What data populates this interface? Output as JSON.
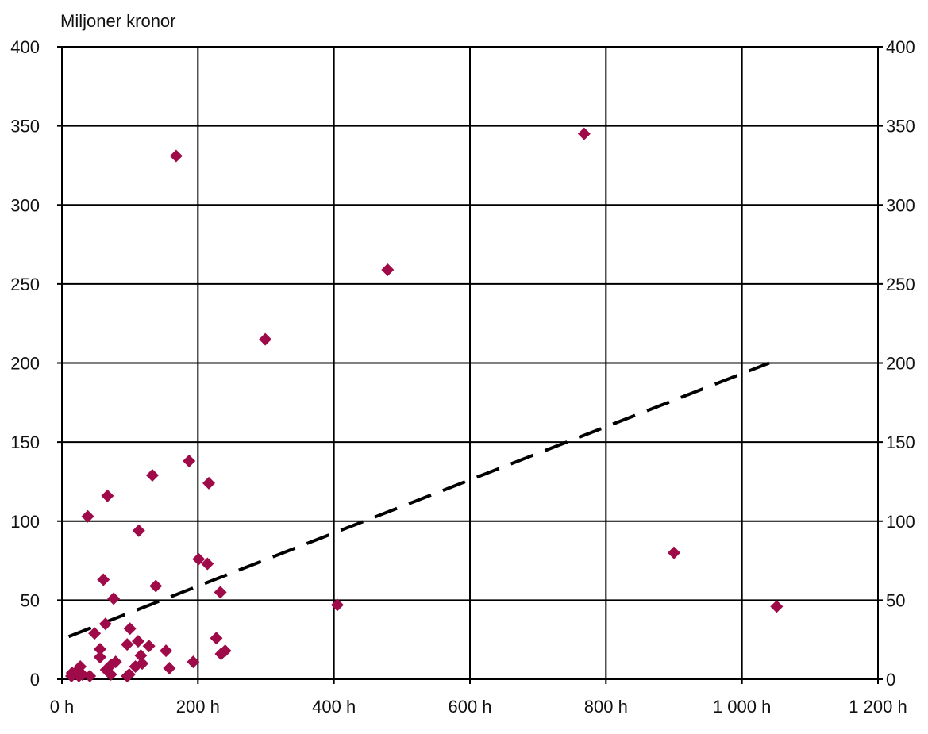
{
  "chart_data": {
    "type": "scatter",
    "unit_label": "Miljoner kronor",
    "xlim": [
      0,
      1200
    ],
    "ylim": [
      0,
      400
    ],
    "x_ticks": [
      0,
      200,
      400,
      600,
      800,
      1000,
      1200
    ],
    "x_tick_labels": [
      "0 h",
      "200 h",
      "400 h",
      "600 h",
      "800 h",
      "1 000 h",
      "1 200 h"
    ],
    "y_ticks": [
      0,
      50,
      100,
      150,
      200,
      250,
      300,
      350,
      400
    ],
    "y_tick_labels": [
      "0",
      "50",
      "100",
      "150",
      "200",
      "250",
      "300",
      "350",
      "400"
    ],
    "grid": true,
    "marker_color": "#9E0B48",
    "trend_color": "#000000",
    "points": [
      {
        "x": 168,
        "y": 331
      },
      {
        "x": 768,
        "y": 345
      },
      {
        "x": 479,
        "y": 259
      },
      {
        "x": 299,
        "y": 215
      },
      {
        "x": 187,
        "y": 138
      },
      {
        "x": 133,
        "y": 129
      },
      {
        "x": 216,
        "y": 124
      },
      {
        "x": 67,
        "y": 116
      },
      {
        "x": 38,
        "y": 103
      },
      {
        "x": 113,
        "y": 94
      },
      {
        "x": 900,
        "y": 80
      },
      {
        "x": 201,
        "y": 76
      },
      {
        "x": 214,
        "y": 73
      },
      {
        "x": 61,
        "y": 63
      },
      {
        "x": 138,
        "y": 59
      },
      {
        "x": 233,
        "y": 55
      },
      {
        "x": 76,
        "y": 51
      },
      {
        "x": 405,
        "y": 47
      },
      {
        "x": 1051,
        "y": 46
      },
      {
        "x": 64,
        "y": 35
      },
      {
        "x": 100,
        "y": 32
      },
      {
        "x": 48,
        "y": 29
      },
      {
        "x": 227,
        "y": 26
      },
      {
        "x": 112,
        "y": 24
      },
      {
        "x": 96,
        "y": 22
      },
      {
        "x": 128,
        "y": 21
      },
      {
        "x": 56,
        "y": 19
      },
      {
        "x": 153,
        "y": 18
      },
      {
        "x": 240,
        "y": 18
      },
      {
        "x": 234,
        "y": 16
      },
      {
        "x": 116,
        "y": 15
      },
      {
        "x": 56,
        "y": 14
      },
      {
        "x": 193,
        "y": 11
      },
      {
        "x": 79,
        "y": 11
      },
      {
        "x": 72,
        "y": 9
      },
      {
        "x": 118,
        "y": 10
      },
      {
        "x": 108,
        "y": 8
      },
      {
        "x": 158,
        "y": 7
      },
      {
        "x": 27,
        "y": 8
      },
      {
        "x": 65,
        "y": 6
      },
      {
        "x": 22,
        "y": 5
      },
      {
        "x": 15,
        "y": 4
      },
      {
        "x": 72,
        "y": 3
      },
      {
        "x": 30,
        "y": 3
      },
      {
        "x": 96,
        "y": 2
      },
      {
        "x": 41,
        "y": 2
      },
      {
        "x": 25,
        "y": 2
      },
      {
        "x": 14,
        "y": 2
      },
      {
        "x": 99,
        "y": 3
      }
    ],
    "trend_line": {
      "x": [
        10,
        1040
      ],
      "y": [
        27,
        200
      ],
      "style": "dashed"
    }
  }
}
